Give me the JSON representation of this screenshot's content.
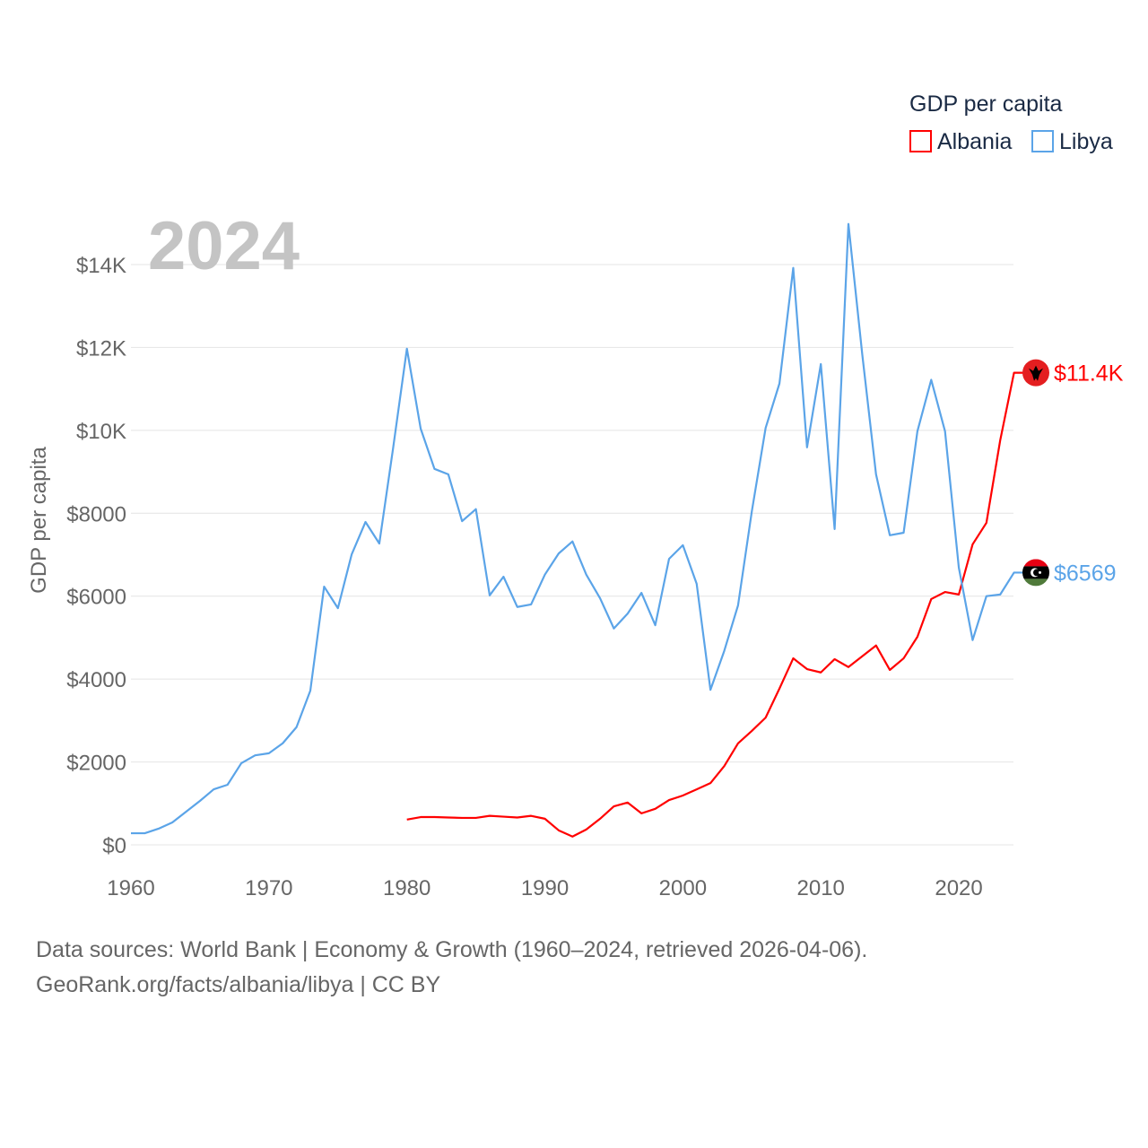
{
  "chart_data": {
    "type": "line",
    "title": "GDP per capita",
    "year_label": "2024",
    "ylabel": "GDP per capita",
    "xlabel": "",
    "xlim": [
      1960,
      2024
    ],
    "ylim": [
      0,
      14000
    ],
    "x_ticks": [
      1960,
      1970,
      1980,
      1990,
      2000,
      2010,
      2020
    ],
    "y_ticks": [
      {
        "value": 0,
        "label": "$0"
      },
      {
        "value": 2000,
        "label": "$2000"
      },
      {
        "value": 4000,
        "label": "$4000"
      },
      {
        "value": 6000,
        "label": "$6000"
      },
      {
        "value": 8000,
        "label": "$8000"
      },
      {
        "value": 10000,
        "label": "$10K"
      },
      {
        "value": 12000,
        "label": "$12K"
      },
      {
        "value": 14000,
        "label": "$14K"
      }
    ],
    "grid": true,
    "legend_position": "top-right",
    "series": [
      {
        "name": "Albania",
        "color": "#ff0000",
        "end_label": "$11.4K",
        "flag": "albania-flag",
        "start_year": 1980,
        "values": [
          610,
          670,
          670,
          660,
          650,
          650,
          700,
          680,
          660,
          700,
          630,
          350,
          200,
          370,
          630,
          930,
          1020,
          760,
          870,
          1080,
          1190,
          1340,
          1490,
          1900,
          2450,
          2750,
          3070,
          3770,
          4500,
          4240,
          4160,
          4480,
          4290,
          4550,
          4810,
          4220,
          4500,
          5020,
          5930,
          6100,
          6040,
          7250,
          7770,
          9760,
          11390
        ]
      },
      {
        "name": "Libya",
        "color": "#5ba4e8",
        "end_label": "$6569",
        "flag": "libya-flag",
        "start_year": 1960,
        "values": [
          280,
          280,
          390,
          540,
          800,
          1060,
          1340,
          1450,
          1970,
          2160,
          2210,
          2450,
          2840,
          3720,
          6230,
          5710,
          7010,
          7790,
          7270,
          9570,
          11970,
          10040,
          9070,
          8940,
          7810,
          8100,
          6020,
          6470,
          5740,
          5800,
          6520,
          7030,
          7320,
          6520,
          5950,
          5220,
          5580,
          6080,
          5300,
          6900,
          7230,
          6300,
          3740,
          4680,
          5780,
          8050,
          10060,
          11130,
          13920,
          9590,
          11600,
          7620,
          14980,
          11840,
          8940,
          7470,
          7530,
          9980,
          11220,
          9980,
          6690,
          4940,
          6000,
          6040,
          6569
        ]
      }
    ]
  },
  "footer": {
    "line1": "Data sources: World Bank | Economy & Growth (1960–2024, retrieved 2026-04-06).",
    "line2": "GeoRank.org/facts/albania/libya | CC BY"
  }
}
